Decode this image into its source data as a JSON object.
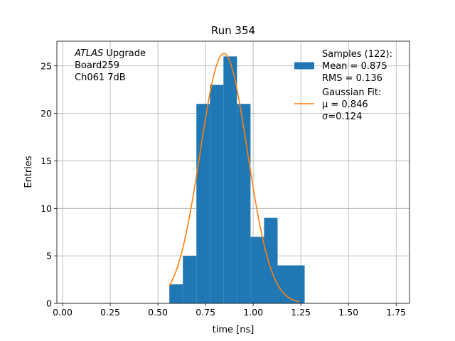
{
  "chart_data": {
    "type": "bar",
    "title": "Run 354",
    "xlabel": "time [ns]",
    "ylabel": "Entries",
    "xlim": [
      -0.03,
      1.82
    ],
    "ylim": [
      0,
      27.6
    ],
    "grid": true,
    "x_ticks": [
      0.0,
      0.25,
      0.5,
      0.75,
      1.0,
      1.25,
      1.5,
      1.75
    ],
    "x_tick_labels": [
      "0.00",
      "0.25",
      "0.50",
      "0.75",
      "1.00",
      "1.25",
      "1.50",
      "1.75"
    ],
    "y_ticks": [
      0,
      5,
      10,
      15,
      20,
      25
    ],
    "y_tick_labels": [
      "0",
      "5",
      "10",
      "15",
      "20",
      "25"
    ],
    "histogram": {
      "bin_edges": [
        0.56,
        0.631,
        0.702,
        0.773,
        0.844,
        0.915,
        0.986,
        1.057,
        1.128,
        1.199,
        1.27
      ],
      "counts": [
        2,
        5,
        21,
        23,
        26,
        21,
        7,
        9,
        4,
        4
      ],
      "color": "#1f77b4"
    },
    "fit": {
      "type": "gaussian",
      "amplitude": 26.3,
      "mu": 0.846,
      "sigma": 0.124,
      "x_range": [
        0.56,
        1.24
      ],
      "color": "#ff7f0e"
    },
    "legend_placement": "top-right",
    "legend": [
      {
        "kind": "patch",
        "color": "#1f77b4",
        "lines": [
          "Samples (122):",
          " Mean = 0.875",
          " RMS = 0.136"
        ]
      },
      {
        "kind": "line",
        "color": "#ff7f0e",
        "lines": [
          "Gaussian Fit:",
          " μ = 0.846",
          " σ=0.124"
        ]
      }
    ],
    "annotation": {
      "lines": [
        {
          "italic": "ATLAS",
          "text": " Upgrade"
        },
        {
          "italic": "",
          "text": " Board259"
        },
        {
          "italic": "",
          "text": " Ch061 7dB"
        }
      ]
    }
  }
}
